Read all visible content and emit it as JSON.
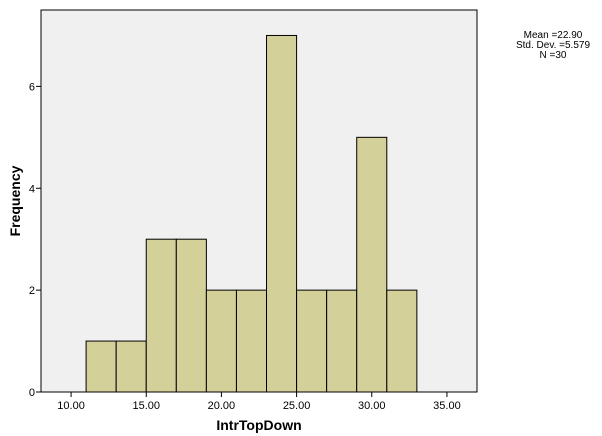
{
  "chart_data": {
    "type": "bar",
    "subtype": "histogram",
    "xlabel": "IntrTopDown",
    "ylabel": "Frequency",
    "bins": [
      {
        "start": 11.0,
        "end": 13.0,
        "count": 1
      },
      {
        "start": 13.0,
        "end": 15.0,
        "count": 1
      },
      {
        "start": 15.0,
        "end": 17.0,
        "count": 3
      },
      {
        "start": 17.0,
        "end": 19.0,
        "count": 3
      },
      {
        "start": 19.0,
        "end": 21.0,
        "count": 2
      },
      {
        "start": 21.0,
        "end": 23.0,
        "count": 2
      },
      {
        "start": 23.0,
        "end": 25.0,
        "count": 7
      },
      {
        "start": 25.0,
        "end": 27.0,
        "count": 2
      },
      {
        "start": 27.0,
        "end": 29.0,
        "count": 2
      },
      {
        "start": 29.0,
        "end": 31.0,
        "count": 5
      },
      {
        "start": 31.0,
        "end": 33.0,
        "count": 2
      }
    ],
    "xlim": [
      8.0,
      37.0
    ],
    "ylim": [
      0,
      7.5
    ],
    "x_ticks": [
      10,
      15,
      20,
      25,
      30,
      35
    ],
    "x_tick_labels": [
      "10.00",
      "15.00",
      "20.00",
      "25.00",
      "30.00",
      "35.00"
    ],
    "y_ticks": [
      0,
      2,
      4,
      6
    ],
    "y_tick_labels": [
      "0",
      "2",
      "4",
      "6"
    ],
    "grid": false,
    "colors": {
      "bar_fill": "#d4d09a",
      "bar_stroke": "#000000",
      "plot_background": "#f0f0f0"
    },
    "stats": {
      "mean": "Mean =22.90",
      "std_dev": "Std. Dev. =5.579",
      "n": "N =30"
    },
    "legend_position": "top-right"
  }
}
